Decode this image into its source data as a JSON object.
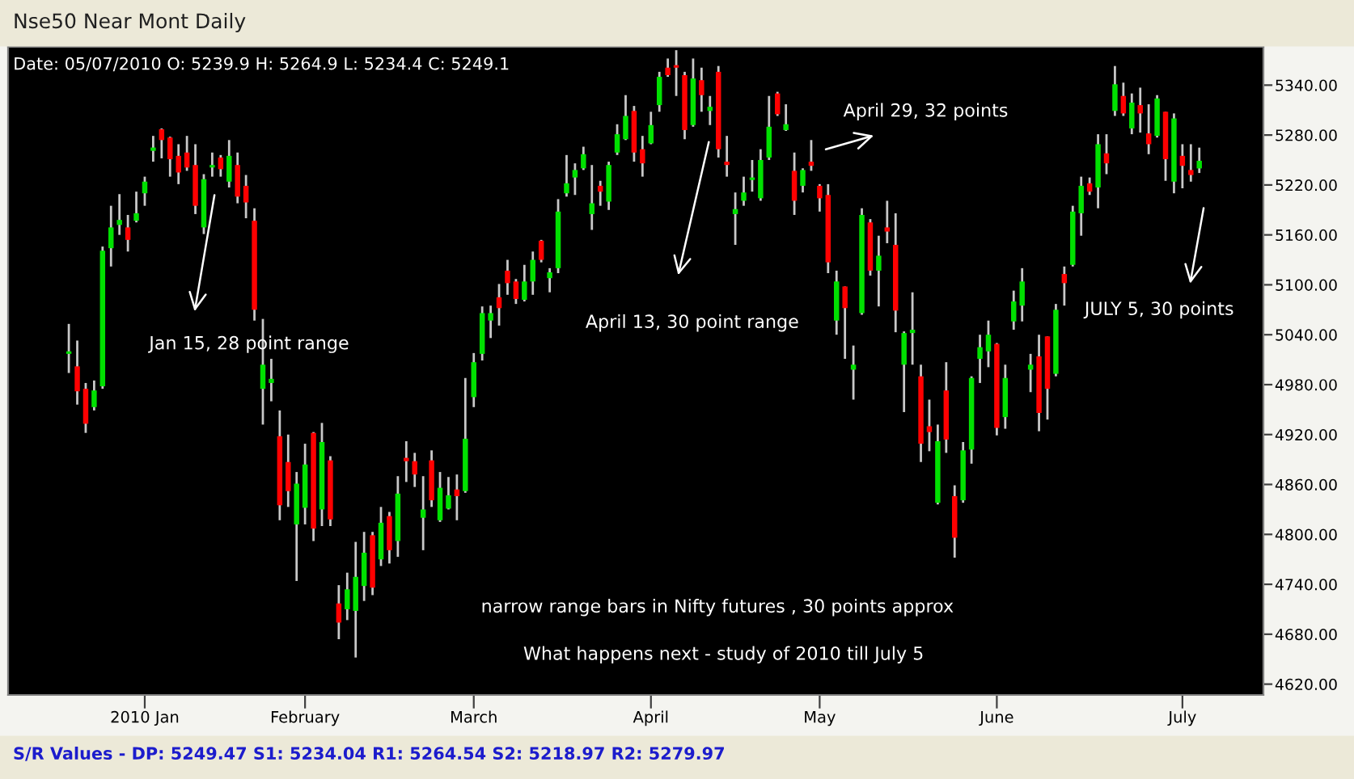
{
  "chart_data": {
    "type": "candlestick",
    "title": "Nse50 Near Mont Daily",
    "annotations": [
      "Date: 05/07/2010 O: 5239.9 H: 5264.9 L: 5234.4 C: 5249.1",
      "Jan 15, 28 point range",
      "April 13, 30 point range",
      "April 29, 32 points",
      "JULY 5, 30 points",
      "narrow range bars in Nifty futures , 30 points approx",
      "What happens next - study of 2010 till July 5",
      "S/R Values - DP: 5249.47 S1: 5234.04 R1: 5264.54 S2: 5218.97 R2: 5279.97"
    ],
    "categories": [
      null,
      null,
      null,
      null,
      null,
      null,
      null,
      null,
      null,
      "2010 Jan",
      null,
      null,
      null,
      null,
      null,
      null,
      null,
      null,
      null,
      null,
      null,
      null,
      null,
      null,
      null,
      null,
      null,
      null,
      "February",
      null,
      null,
      null,
      null,
      null,
      null,
      null,
      null,
      null,
      null,
      null,
      null,
      null,
      null,
      null,
      null,
      null,
      null,
      null,
      "March",
      null,
      null,
      null,
      null,
      null,
      null,
      null,
      null,
      null,
      null,
      null,
      null,
      null,
      null,
      null,
      null,
      null,
      null,
      null,
      null,
      "April",
      null,
      null,
      null,
      null,
      null,
      null,
      null,
      null,
      null,
      null,
      null,
      null,
      null,
      null,
      null,
      null,
      null,
      null,
      null,
      "May",
      null,
      null,
      null,
      null,
      null,
      null,
      null,
      null,
      null,
      null,
      null,
      null,
      null,
      null,
      null,
      null,
      null,
      null,
      null,
      null,
      "June",
      null,
      null,
      null,
      null,
      null,
      null,
      null,
      null,
      null,
      null,
      null,
      null,
      null,
      null,
      null,
      null,
      null,
      null,
      null,
      null,
      null,
      "July",
      null,
      null
    ],
    "ohlc": [
      [
        5017,
        5053,
        4994,
        5020
      ],
      [
        5002,
        5033,
        4956,
        4972
      ],
      [
        4975,
        4982,
        4922,
        4933
      ],
      [
        4953,
        4985,
        4949,
        4973
      ],
      [
        4978,
        5146,
        4975,
        5141
      ],
      [
        5144,
        5195,
        5122,
        5169
      ],
      [
        5172,
        5209,
        5160,
        5178
      ],
      [
        5169,
        5184,
        5140,
        5154
      ],
      [
        5177,
        5212,
        5175,
        5186
      ],
      [
        5210,
        5230,
        5195,
        5224
      ],
      [
        5261,
        5279,
        5248,
        5265
      ],
      [
        5287,
        5288,
        5252,
        5274
      ],
      [
        5277,
        5278,
        5230,
        5251
      ],
      [
        5255,
        5269,
        5221,
        5235
      ],
      [
        5259,
        5279,
        5237,
        5241
      ],
      [
        5244,
        5269,
        5185,
        5195
      ],
      [
        5169,
        5233,
        5161,
        5227
      ],
      [
        5241,
        5259,
        5230,
        5244
      ],
      [
        5253,
        5256,
        5230,
        5239
      ],
      [
        5224,
        5274,
        5217,
        5255
      ],
      [
        5244,
        5259,
        5198,
        5206
      ],
      [
        5219,
        5232,
        5180,
        5199
      ],
      [
        5177,
        5192,
        5057,
        5070
      ],
      [
        4975,
        5059,
        4932,
        5004
      ],
      [
        4982,
        5011,
        4960,
        4987
      ],
      [
        4918,
        4949,
        4817,
        4835
      ],
      [
        4887,
        4920,
        4833,
        4852
      ],
      [
        4812,
        4875,
        4744,
        4861
      ],
      [
        4832,
        4909,
        4812,
        4884
      ],
      [
        4922,
        4923,
        4792,
        4807
      ],
      [
        4830,
        4934,
        4810,
        4911
      ],
      [
        4889,
        4894,
        4810,
        4818
      ],
      [
        4717,
        4739,
        4674,
        4694
      ],
      [
        4710,
        4754,
        4697,
        4734
      ],
      [
        4708,
        4791,
        4652,
        4749
      ],
      [
        4738,
        4803,
        4720,
        4778
      ],
      [
        4799,
        4803,
        4727,
        4736
      ],
      [
        4770,
        4833,
        4762,
        4814
      ],
      [
        4822,
        4827,
        4765,
        4781
      ],
      [
        4792,
        4870,
        4773,
        4849
      ],
      [
        4892,
        4912,
        4863,
        4888
      ],
      [
        4888,
        4898,
        4857,
        4872
      ],
      [
        4820,
        4870,
        4781,
        4830
      ],
      [
        4889,
        4901,
        4833,
        4841
      ],
      [
        4817,
        4875,
        4815,
        4856
      ],
      [
        4831,
        4869,
        4830,
        4847
      ],
      [
        4854,
        4872,
        4817,
        4846
      ],
      [
        4852,
        4988,
        4850,
        4915
      ],
      [
        4965,
        5018,
        4953,
        5007
      ],
      [
        5017,
        5074,
        5009,
        5066
      ],
      [
        5057,
        5075,
        5036,
        5066
      ],
      [
        5085,
        5101,
        5051,
        5072
      ],
      [
        5117,
        5130,
        5088,
        5102
      ],
      [
        5104,
        5107,
        5077,
        5083
      ],
      [
        5082,
        5124,
        5080,
        5104
      ],
      [
        5104,
        5140,
        5088,
        5130
      ],
      [
        5153,
        5154,
        5127,
        5130
      ],
      [
        5108,
        5120,
        5091,
        5115
      ],
      [
        5120,
        5203,
        5114,
        5188
      ],
      [
        5210,
        5256,
        5206,
        5222
      ],
      [
        5229,
        5246,
        5208,
        5238
      ],
      [
        5240,
        5266,
        5238,
        5257
      ],
      [
        5185,
        5244,
        5166,
        5198
      ],
      [
        5219,
        5225,
        5195,
        5212
      ],
      [
        5200,
        5248,
        5190,
        5244
      ],
      [
        5259,
        5293,
        5256,
        5281
      ],
      [
        5275,
        5328,
        5274,
        5303
      ],
      [
        5309,
        5315,
        5248,
        5259
      ],
      [
        5263,
        5279,
        5230,
        5246
      ],
      [
        5270,
        5308,
        5269,
        5292
      ],
      [
        5316,
        5356,
        5308,
        5350
      ],
      [
        5361,
        5372,
        5350,
        5352
      ],
      [
        5364,
        5382,
        5327,
        5361
      ],
      [
        5352,
        5356,
        5275,
        5286
      ],
      [
        5292,
        5372,
        5290,
        5348
      ],
      [
        5346,
        5361,
        5308,
        5328
      ],
      [
        5309,
        5327,
        5292,
        5314
      ],
      [
        5356,
        5363,
        5253,
        5263
      ],
      [
        5248,
        5279,
        5230,
        5244
      ],
      [
        5185,
        5211,
        5148,
        5191
      ],
      [
        5201,
        5230,
        5195,
        5211
      ],
      [
        5226,
        5250,
        5212,
        5229
      ],
      [
        5204,
        5263,
        5201,
        5250
      ],
      [
        5253,
        5327,
        5250,
        5290
      ],
      [
        5330,
        5332,
        5303,
        5305
      ],
      [
        5286,
        5317,
        5285,
        5293
      ],
      [
        5237,
        5259,
        5184,
        5201
      ],
      [
        5219,
        5240,
        5211,
        5238
      ],
      [
        5248,
        5274,
        5237,
        5243
      ],
      [
        5219,
        5221,
        5188,
        5204
      ],
      [
        5208,
        5221,
        5114,
        5127
      ],
      [
        5057,
        5117,
        5040,
        5104
      ],
      [
        5098,
        5098,
        5011,
        5072
      ],
      [
        4998,
        5027,
        4962,
        5004
      ],
      [
        5066,
        5192,
        5064,
        5184
      ],
      [
        5175,
        5179,
        5111,
        5117
      ],
      [
        5117,
        5159,
        5074,
        5135
      ],
      [
        5169,
        5201,
        5150,
        5164
      ],
      [
        5148,
        5186,
        5043,
        5069
      ],
      [
        5004,
        5044,
        4947,
        5042
      ],
      [
        5042,
        5091,
        5004,
        5046
      ],
      [
        4990,
        5004,
        4887,
        4909
      ],
      [
        4930,
        4962,
        4900,
        4923
      ],
      [
        4838,
        4932,
        4836,
        4912
      ],
      [
        4973,
        5007,
        4898,
        4914
      ],
      [
        4846,
        4859,
        4772,
        4796
      ],
      [
        4841,
        4911,
        4838,
        4901
      ],
      [
        4902,
        4990,
        4885,
        4988
      ],
      [
        5011,
        5040,
        4982,
        5025
      ],
      [
        5020,
        5057,
        5001,
        5040
      ],
      [
        5029,
        5030,
        4919,
        4928
      ],
      [
        4941,
        5004,
        4927,
        4988
      ],
      [
        5056,
        5093,
        5046,
        5080
      ],
      [
        5075,
        5120,
        5056,
        5104
      ],
      [
        4998,
        5017,
        4971,
        5004
      ],
      [
        5014,
        5040,
        4924,
        4946
      ],
      [
        5038,
        5038,
        4938,
        4975
      ],
      [
        4993,
        5077,
        4990,
        5070
      ],
      [
        5113,
        5122,
        5075,
        5102
      ],
      [
        5124,
        5195,
        5122,
        5188
      ],
      [
        5186,
        5230,
        5159,
        5219
      ],
      [
        5222,
        5229,
        5208,
        5212
      ],
      [
        5217,
        5281,
        5192,
        5269
      ],
      [
        5258,
        5281,
        5233,
        5246
      ],
      [
        5309,
        5363,
        5303,
        5341
      ],
      [
        5327,
        5343,
        5303,
        5306
      ],
      [
        5288,
        5330,
        5281,
        5319
      ],
      [
        5316,
        5337,
        5283,
        5306
      ],
      [
        5282,
        5317,
        5257,
        5269
      ],
      [
        5279,
        5328,
        5277,
        5324
      ],
      [
        5308,
        5308,
        5225,
        5251
      ],
      [
        5224,
        5306,
        5210,
        5300
      ],
      [
        5255,
        5269,
        5216,
        5243
      ],
      [
        5238,
        5269,
        5224,
        5232
      ],
      [
        5239.9,
        5264.9,
        5234.4,
        5249.1
      ]
    ],
    "colors": [
      "#00e000",
      "#ff0000",
      "#ff0000",
      "#00e000",
      "#00e000",
      "#00e000",
      "#00e000",
      "#ff0000",
      "#00e000",
      "#00e000",
      "#00e000",
      "#ff0000",
      "#ff0000",
      "#ff0000",
      "#ff0000",
      "#ff0000",
      "#00e000",
      "#00e000",
      "#ff0000",
      "#00e000",
      "#ff0000",
      "#ff0000",
      "#ff0000",
      "#00e000",
      "#00e000",
      "#ff0000",
      "#ff0000",
      "#00e000",
      "#00e000",
      "#ff0000",
      "#00e000",
      "#ff0000",
      "#ff0000",
      "#00e000",
      "#00e000",
      "#00e000",
      "#ff0000",
      "#00e000",
      "#ff0000",
      "#00e000",
      "#ff0000",
      "#ff0000",
      "#00e000",
      "#ff0000",
      "#00e000",
      "#00e000",
      "#ff0000",
      "#00e000",
      "#00e000",
      "#00e000",
      "#00e000",
      "#ff0000",
      "#ff0000",
      "#ff0000",
      "#00e000",
      "#00e000",
      "#ff0000",
      "#00e000",
      "#00e000",
      "#00e000",
      "#00e000",
      "#00e000",
      "#00e000",
      "#ff0000",
      "#00e000",
      "#00e000",
      "#00e000",
      "#ff0000",
      "#ff0000",
      "#00e000",
      "#00e000",
      "#ff0000",
      "#ff0000",
      "#ff0000",
      "#00e000",
      "#ff0000",
      "#00e000",
      "#ff0000",
      "#ff0000",
      "#00e000",
      "#00e000",
      "#00e000",
      "#00e000",
      "#00e000",
      "#ff0000",
      "#00e000",
      "#ff0000",
      "#00e000",
      "#ff0000",
      "#ff0000",
      "#ff0000",
      "#00e000",
      "#ff0000",
      "#00e000",
      "#00e000",
      "#ff0000",
      "#00e000",
      "#ff0000",
      "#ff0000",
      "#00e000",
      "#00e000",
      "#ff0000",
      "#ff0000",
      "#00e000",
      "#ff0000",
      "#ff0000",
      "#00e000",
      "#00e000",
      "#00e000",
      "#00e000",
      "#ff0000",
      "#00e000",
      "#00e000",
      "#00e000",
      "#00e000",
      "#ff0000",
      "#ff0000",
      "#00e000",
      "#ff0000",
      "#00e000",
      "#00e000",
      "#ff0000",
      "#00e000",
      "#ff0000",
      "#00e000",
      "#ff0000",
      "#00e000",
      "#ff0000",
      "#ff0000",
      "#00e000",
      "#ff0000",
      "#00e000",
      "#ff0000",
      "#ff0000",
      "#00e000"
    ],
    "ylim": [
      4607,
      5386
    ],
    "yticks": [
      {
        "value": 4620,
        "label": "4620.00"
      },
      {
        "value": 4680,
        "label": "4680.00"
      },
      {
        "value": 4740,
        "label": "4740.00"
      },
      {
        "value": 4800,
        "label": "4800.00"
      },
      {
        "value": 4860,
        "label": "4860.00"
      },
      {
        "value": 4920,
        "label": "4920.00"
      },
      {
        "value": 4980,
        "label": "4980.00"
      },
      {
        "value": 5040,
        "label": "5040.00"
      },
      {
        "value": 5100,
        "label": "5100.00"
      },
      {
        "value": 5160,
        "label": "5160.00"
      },
      {
        "value": 5220,
        "label": "5220.00"
      },
      {
        "value": 5280,
        "label": "5280.00"
      },
      {
        "value": 5340,
        "label": "5340.00"
      }
    ],
    "grid": false
  }
}
